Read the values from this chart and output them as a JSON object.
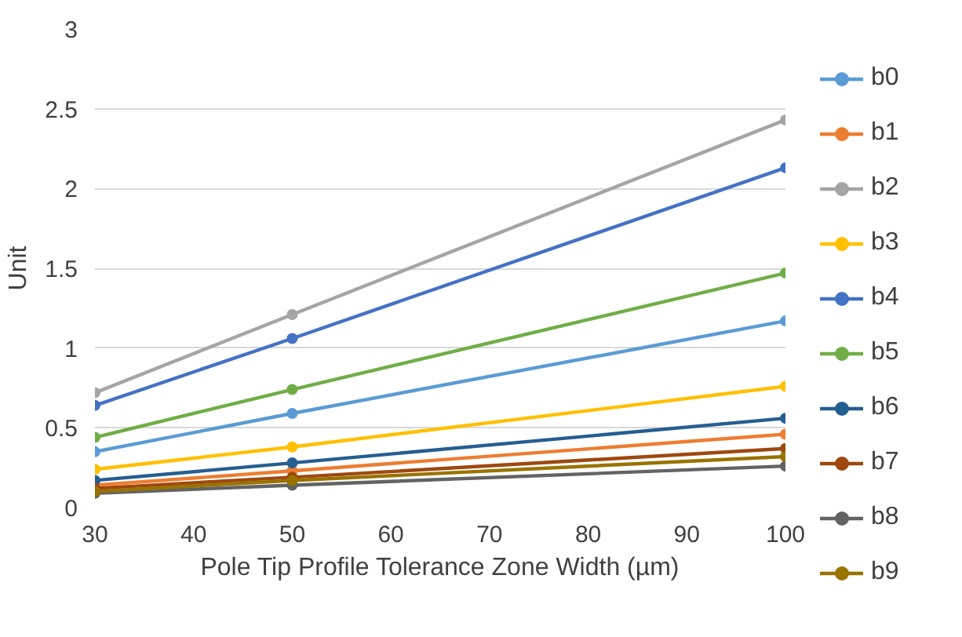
{
  "chart_data": {
    "type": "line",
    "xlabel": "Pole Tip Profile Tolerance Zone Width (µm)",
    "ylabel": "Unit",
    "x": [
      30,
      50,
      100
    ],
    "series": [
      {
        "name": "b0",
        "color": "#5b9bd5",
        "values": [
          0.35,
          0.59,
          1.17
        ]
      },
      {
        "name": "b1",
        "color": "#ed7d31",
        "values": [
          0.14,
          0.23,
          0.46
        ]
      },
      {
        "name": "b2",
        "color": "#a5a5a5",
        "values": [
          0.72,
          1.21,
          2.43
        ]
      },
      {
        "name": "b3",
        "color": "#ffc000",
        "values": [
          0.24,
          0.38,
          0.76
        ]
      },
      {
        "name": "b4",
        "color": "#4472c4",
        "values": [
          0.64,
          1.06,
          2.13
        ]
      },
      {
        "name": "b5",
        "color": "#70ad47",
        "values": [
          0.44,
          0.74,
          1.47
        ]
      },
      {
        "name": "b6",
        "color": "#255e91",
        "values": [
          0.17,
          0.28,
          0.56
        ]
      },
      {
        "name": "b7",
        "color": "#9e480e",
        "values": [
          0.12,
          0.19,
          0.37
        ]
      },
      {
        "name": "b8",
        "color": "#636363",
        "values": [
          0.09,
          0.14,
          0.26
        ]
      },
      {
        "name": "b9",
        "color": "#997300",
        "values": [
          0.1,
          0.17,
          0.32
        ]
      }
    ],
    "xlim": [
      30,
      100
    ],
    "xticks": [
      30,
      40,
      50,
      60,
      70,
      80,
      90,
      100
    ],
    "ylim": [
      0,
      3
    ],
    "yticks": [
      0,
      0.5,
      1,
      1.5,
      2,
      2.5,
      3
    ],
    "grid": "y",
    "legend": "right",
    "marker": "circle",
    "line_style": "solid"
  }
}
